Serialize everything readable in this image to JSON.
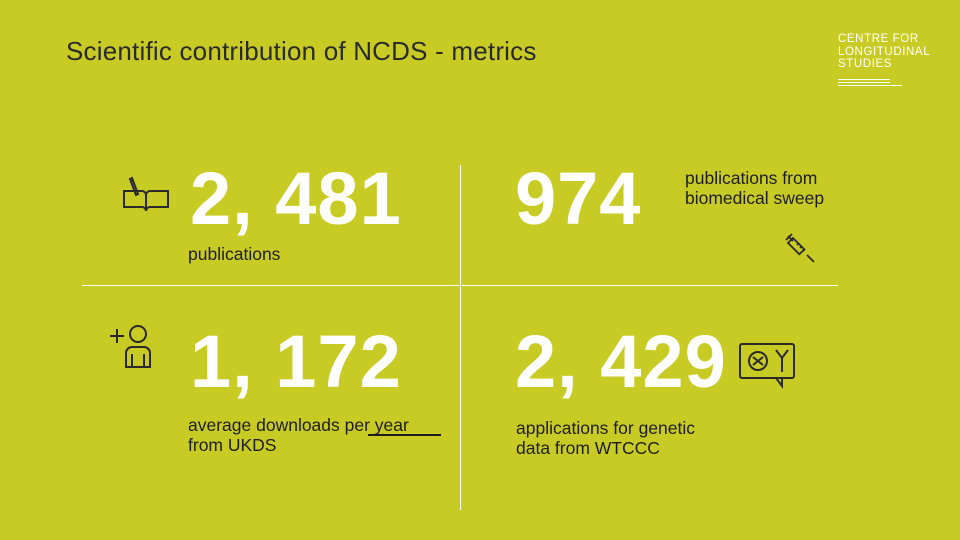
{
  "title": "Scientific contribution of NCDS - metrics",
  "logo": {
    "lines": [
      "CENTRE FOR",
      "LONGITUDINAL",
      "STUDIES"
    ]
  },
  "metrics": {
    "publications": {
      "value": "2, 481",
      "label": "publications"
    },
    "biomedical": {
      "value": "974",
      "label_line1": "publications from",
      "label_line2": "biomedical sweep"
    },
    "downloads": {
      "value": "1, 172",
      "label_line1": "average downloads per year",
      "label_line2": "from UKDS"
    },
    "genetic": {
      "value": "2, 429",
      "label_line1": "applications for genetic",
      "label_line2": "data from WTCCC"
    }
  },
  "icons": {
    "publications": "book-pencil-icon",
    "biomedical": "syringe-icon",
    "downloads": "add-user-icon",
    "genetic": "dna-chat-icon"
  },
  "colors": {
    "background": "#c8cb24",
    "accent": "#ffffff",
    "text": "#1e1e1e"
  }
}
